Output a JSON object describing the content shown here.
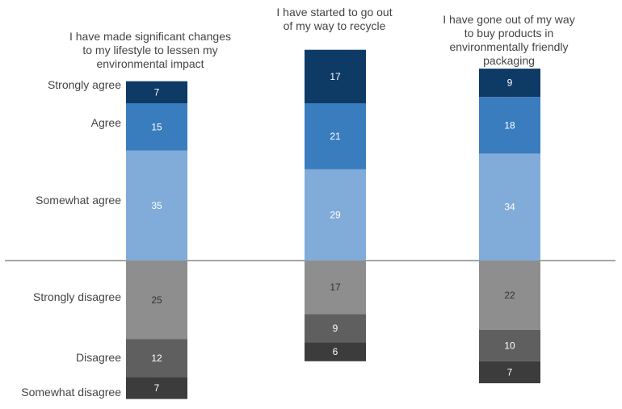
{
  "chart_data": {
    "type": "bar",
    "stacked": "diverging",
    "categories": [
      "I have made significant changes to my lifestyle to lessen my environmental impact",
      "I have started to go out of my way to recycle",
      "I have gone out of my way to buy products in environmentally friendly packaging"
    ],
    "title_lines": [
      [
        "I have made significant changes",
        "to my lifestyle to lessen my",
        "environmental impact"
      ],
      [
        "I have started to go out",
        "of my way to recycle"
      ],
      [
        "I have gone out of my way",
        "to buy products in",
        "environmentally friendly",
        "packaging"
      ]
    ],
    "series": [
      {
        "name": "Strongly agree",
        "side": "agree",
        "color": "#0e3a66",
        "values": [
          7,
          17,
          9
        ]
      },
      {
        "name": "Agree",
        "side": "agree",
        "color": "#3a7dbf",
        "values": [
          15,
          21,
          18
        ]
      },
      {
        "name": "Somewhat agree",
        "side": "agree",
        "color": "#81abd8",
        "values": [
          35,
          29,
          34
        ]
      },
      {
        "name": "Strongly disagree",
        "side": "disagree",
        "color": "#8e8e8e",
        "values": [
          25,
          17,
          22
        ]
      },
      {
        "name": "Disagree",
        "side": "disagree",
        "color": "#5f5f5f",
        "values": [
          12,
          9,
          10
        ]
      },
      {
        "name": "Somewhat disagree",
        "side": "disagree",
        "color": "#3c3c3c",
        "values": [
          7,
          6,
          7
        ]
      }
    ],
    "legend": "left",
    "grid": false,
    "baseline": true
  }
}
